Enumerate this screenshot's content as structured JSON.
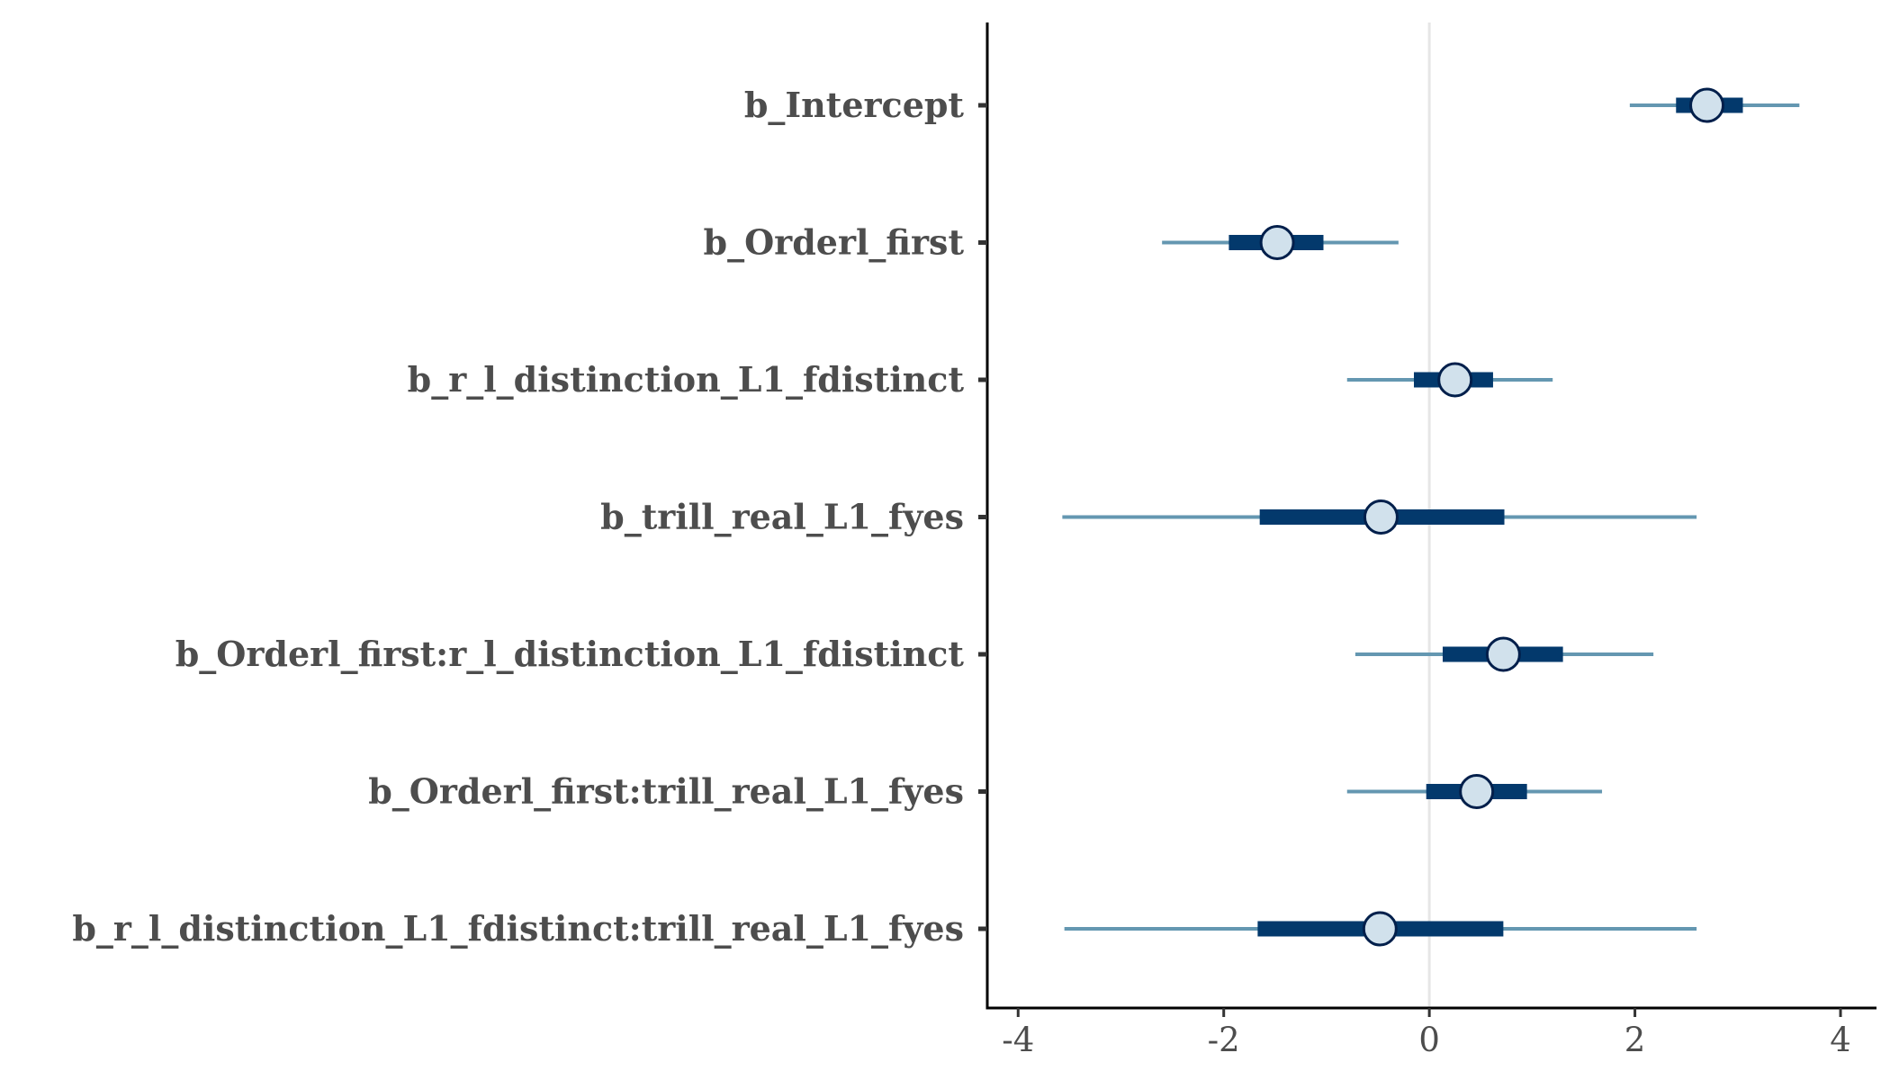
{
  "chart_data": {
    "type": "interval",
    "xlim": [
      -4.3,
      4.35
    ],
    "x_ticks": [
      -4,
      -2,
      0,
      2,
      4
    ],
    "x_tick_labels": [
      "-4",
      "-2",
      "0",
      "2",
      "4"
    ],
    "reference_line": 0,
    "grid": false,
    "colors": {
      "outer_interval": "#6497b1",
      "inner_interval": "#03396c",
      "point_fill": "#d1e1ec",
      "point_stroke": "#011f4b",
      "reference_line": "#e6e6e6",
      "axis": "#000000",
      "label_text": "#4d4d4d"
    },
    "parameters": [
      {
        "label": "b_Intercept",
        "estimate": 2.7,
        "inner": [
          2.4,
          3.05
        ],
        "outer": [
          1.95,
          3.6
        ]
      },
      {
        "label": "b_Orderl_first",
        "estimate": -1.48,
        "inner": [
          -1.95,
          -1.03
        ],
        "outer": [
          -2.6,
          -0.3
        ]
      },
      {
        "label": "b_r_l_distinction_L1_fdistinct",
        "estimate": 0.25,
        "inner": [
          -0.15,
          0.62
        ],
        "outer": [
          -0.8,
          1.2
        ]
      },
      {
        "label": "b_trill_real_L1_fyes",
        "estimate": -0.47,
        "inner": [
          -1.65,
          0.73
        ],
        "outer": [
          -3.57,
          2.6
        ]
      },
      {
        "label": "b_Orderl_first:r_l_distinction_L1_fdistinct",
        "estimate": 0.72,
        "inner": [
          0.13,
          1.3
        ],
        "outer": [
          -0.72,
          2.18
        ]
      },
      {
        "label": "b_Orderl_first:trill_real_L1_fyes",
        "estimate": 0.46,
        "inner": [
          -0.03,
          0.95
        ],
        "outer": [
          -0.8,
          1.68
        ]
      },
      {
        "label": "b_r_l_distinction_L1_fdistinct:trill_real_L1_fyes",
        "estimate": -0.48,
        "inner": [
          -1.67,
          0.72
        ],
        "outer": [
          -3.55,
          2.6
        ]
      }
    ]
  }
}
